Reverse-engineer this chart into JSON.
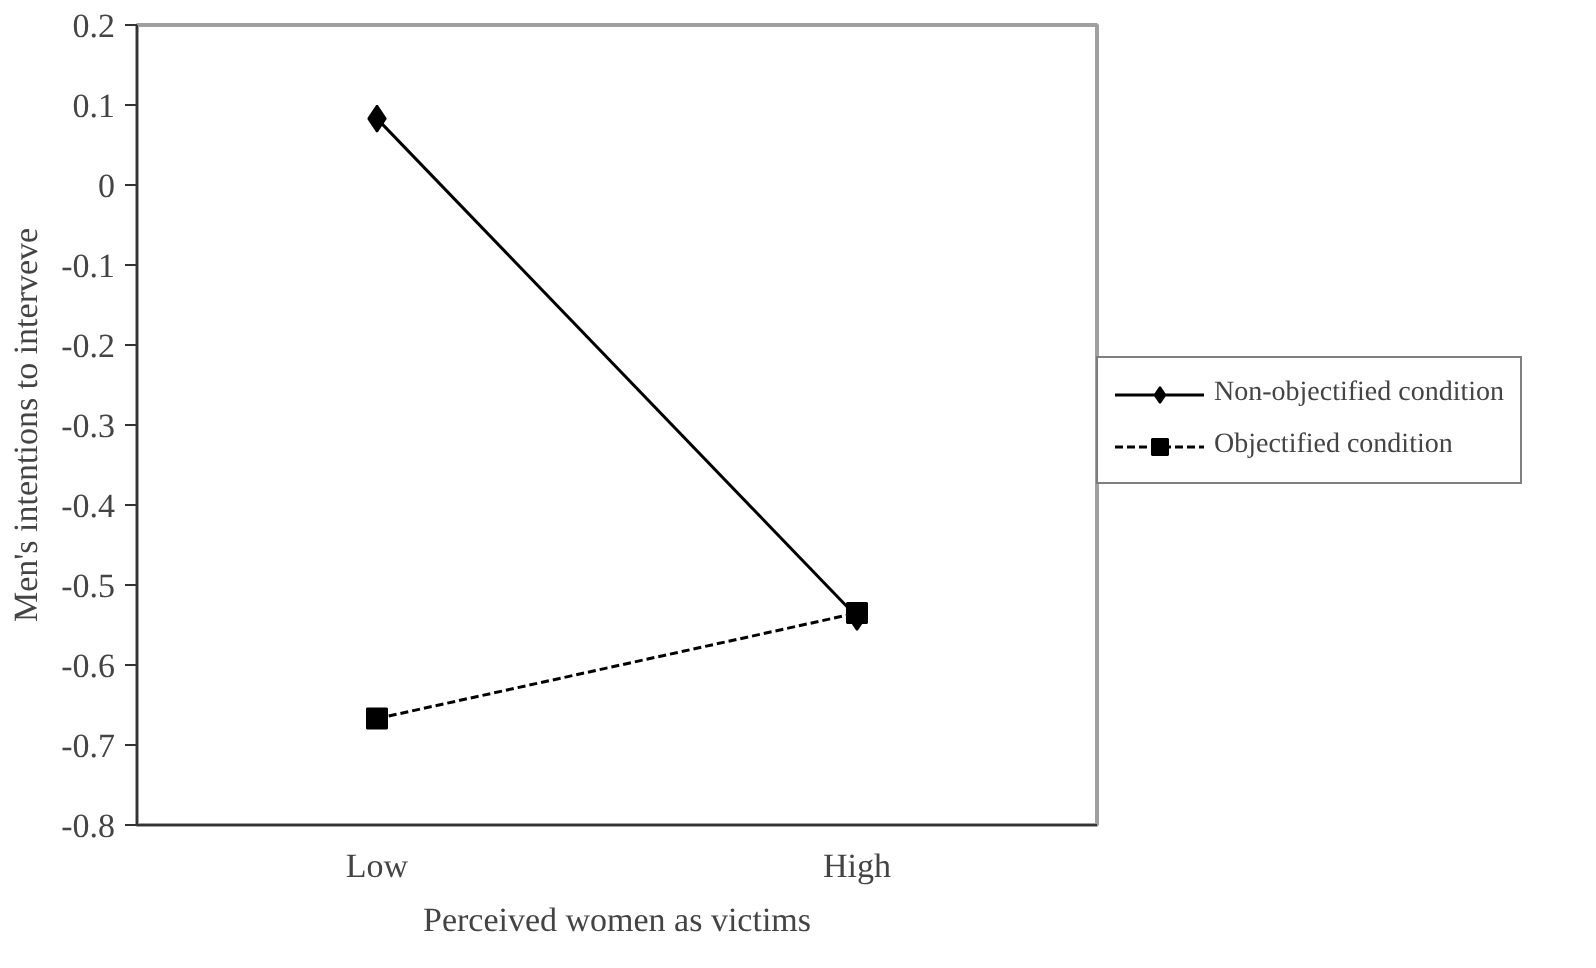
{
  "chart_data": {
    "type": "line",
    "xlabel": "Perceived women as victims",
    "ylabel": "Men's intentions to interveve",
    "categories": [
      "Low",
      "High"
    ],
    "series": [
      {
        "name": "Non-objectified condition",
        "color": "#000000",
        "values": [
          0.083,
          -0.54
        ],
        "marker": "diamond",
        "line_style": "solid"
      },
      {
        "name": "Objectified condition",
        "color": "#000000",
        "values": [
          -0.667,
          -0.535
        ],
        "marker": "square",
        "line_style": "dashed"
      }
    ],
    "ylim": [
      -0.8,
      0.2
    ],
    "yticks": [
      {
        "value": -0.8,
        "label": "-0.8"
      },
      {
        "value": -0.7,
        "label": "-0.7"
      },
      {
        "value": -0.6,
        "label": "-0.6"
      },
      {
        "value": -0.5,
        "label": "-0.5"
      },
      {
        "value": -0.4,
        "label": "-0.4"
      },
      {
        "value": -0.3,
        "label": "-0.3"
      },
      {
        "value": -0.2,
        "label": "-0.2"
      },
      {
        "value": -0.1,
        "label": "-0.1"
      },
      0,
      0.1,
      0.2
    ],
    "grid": false,
    "legend": "right"
  }
}
